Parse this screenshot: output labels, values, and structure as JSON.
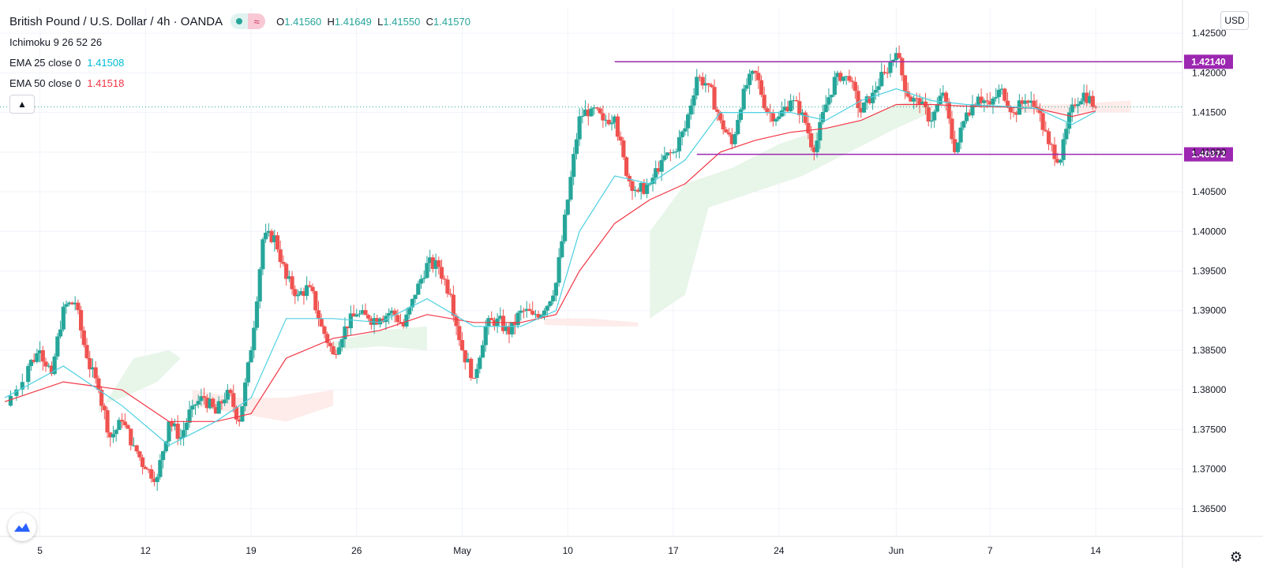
{
  "header": {
    "symbol": "British Pound / U.S. Dollar",
    "interval": "4h",
    "broker": "OANDA",
    "ohlc": {
      "o_label": "O",
      "o": "1.41560",
      "h_label": "H",
      "h": "1.41649",
      "l_label": "L",
      "l": "1.41550",
      "c_label": "C",
      "c": "1.41570"
    }
  },
  "indicators": [
    {
      "label": "Ichimoku 9 26 52 26",
      "value": "",
      "color": "#131722"
    },
    {
      "label": "EMA 25 close 0",
      "value": "1.41508",
      "color": "#00bcd4"
    },
    {
      "label": "EMA 50 close 0",
      "value": "1.41518",
      "color": "#f23645"
    }
  ],
  "currency_button": "USD",
  "colors": {
    "up": "#26a69a",
    "down": "#ef5350",
    "ema25": "#4dd0e1",
    "ema50": "#f23645",
    "level": "#9c27b0",
    "cloud_bull": "#e8f5e9",
    "cloud_bear": "#fdecea"
  },
  "chart_data": {
    "type": "candlestick",
    "x_axis": {
      "min": 0,
      "max": 100,
      "ticks": [
        {
          "label": "5",
          "x": 3
        },
        {
          "label": "12",
          "x": 12
        },
        {
          "label": "19",
          "x": 21
        },
        {
          "label": "26",
          "x": 30
        },
        {
          "label": "May",
          "x": 39
        },
        {
          "label": "10",
          "x": 48
        },
        {
          "label": "17",
          "x": 57
        },
        {
          "label": "24",
          "x": 66
        },
        {
          "label": "Jun",
          "x": 76
        },
        {
          "label": "7",
          "x": 84
        },
        {
          "label": "14",
          "x": 93
        }
      ]
    },
    "y_axis": {
      "min": 1.3615,
      "max": 1.4282,
      "ticks": [
        "1.42500",
        "1.42000",
        "1.41500",
        "1.41000",
        "1.40500",
        "1.40000",
        "1.39500",
        "1.39000",
        "1.38500",
        "1.38000",
        "1.37500",
        "1.37000",
        "1.36500"
      ]
    },
    "close_series": [
      [
        0,
        1.378
      ],
      [
        2,
        1.383
      ],
      [
        3,
        1.385
      ],
      [
        4,
        1.382
      ],
      [
        5,
        1.3905
      ],
      [
        6,
        1.391
      ],
      [
        7,
        1.384
      ],
      [
        8,
        1.38
      ],
      [
        9,
        1.374
      ],
      [
        10,
        1.376
      ],
      [
        11,
        1.373
      ],
      [
        12,
        1.37
      ],
      [
        13,
        1.369
      ],
      [
        14,
        1.376
      ],
      [
        15,
        1.374
      ],
      [
        16,
        1.378
      ],
      [
        17,
        1.379
      ],
      [
        18,
        1.377
      ],
      [
        19,
        1.38
      ],
      [
        20,
        1.376
      ],
      [
        21,
        1.385
      ],
      [
        22,
        1.399
      ],
      [
        23,
        1.3995
      ],
      [
        24,
        1.394
      ],
      [
        25,
        1.392
      ],
      [
        26,
        1.393
      ],
      [
        27,
        1.388
      ],
      [
        28,
        1.3845
      ],
      [
        29,
        1.388
      ],
      [
        30,
        1.3895
      ],
      [
        31,
        1.389
      ],
      [
        32,
        1.389
      ],
      [
        33,
        1.39
      ],
      [
        34,
        1.388
      ],
      [
        35,
        1.392
      ],
      [
        36,
        1.396
      ],
      [
        37,
        1.3955
      ],
      [
        38,
        1.392
      ],
      [
        39,
        1.385
      ],
      [
        40,
        1.3815
      ],
      [
        41,
        1.388
      ],
      [
        42,
        1.389
      ],
      [
        43,
        1.387
      ],
      [
        44,
        1.39
      ],
      [
        45,
        1.3895
      ],
      [
        46,
        1.39
      ],
      [
        47,
        1.3935
      ],
      [
        48,
        1.404
      ],
      [
        49,
        1.4145
      ],
      [
        50,
        1.4155
      ],
      [
        51,
        1.414
      ],
      [
        52,
        1.4145
      ],
      [
        53,
        1.407
      ],
      [
        54,
        1.405
      ],
      [
        55,
        1.406
      ],
      [
        56,
        1.409
      ],
      [
        57,
        1.41
      ],
      [
        58,
        1.413
      ],
      [
        59,
        1.4195
      ],
      [
        60,
        1.4185
      ],
      [
        61,
        1.414
      ],
      [
        62,
        1.411
      ],
      [
        63,
        1.418
      ],
      [
        64,
        1.42
      ],
      [
        65,
        1.415
      ],
      [
        66,
        1.4145
      ],
      [
        67,
        1.4165
      ],
      [
        68,
        1.415
      ],
      [
        69,
        1.41
      ],
      [
        70,
        1.416
      ],
      [
        71,
        1.42
      ],
      [
        72,
        1.419
      ],
      [
        73,
        1.415
      ],
      [
        74,
        1.4175
      ],
      [
        75,
        1.42
      ],
      [
        76,
        1.4225
      ],
      [
        77,
        1.417
      ],
      [
        78,
        1.416
      ],
      [
        79,
        1.414
      ],
      [
        80,
        1.4175
      ],
      [
        81,
        1.41
      ],
      [
        82,
        1.415
      ],
      [
        83,
        1.417
      ],
      [
        84,
        1.416
      ],
      [
        85,
        1.418
      ],
      [
        86,
        1.415
      ],
      [
        87,
        1.4165
      ],
      [
        88,
        1.4155
      ],
      [
        89,
        1.411
      ],
      [
        90,
        1.409
      ],
      [
        91,
        1.416
      ],
      [
        92,
        1.4175
      ],
      [
        93,
        1.4157
      ]
    ],
    "ema25": [
      [
        0,
        1.379
      ],
      [
        5,
        1.383
      ],
      [
        10,
        1.378
      ],
      [
        14,
        1.373
      ],
      [
        18,
        1.376
      ],
      [
        21,
        1.379
      ],
      [
        24,
        1.389
      ],
      [
        28,
        1.389
      ],
      [
        32,
        1.3885
      ],
      [
        36,
        1.3915
      ],
      [
        40,
        1.388
      ],
      [
        44,
        1.388
      ],
      [
        47,
        1.39
      ],
      [
        49,
        1.4
      ],
      [
        52,
        1.407
      ],
      [
        55,
        1.406
      ],
      [
        58,
        1.409
      ],
      [
        61,
        1.415
      ],
      [
        64,
        1.415
      ],
      [
        67,
        1.415
      ],
      [
        70,
        1.414
      ],
      [
        73,
        1.4165
      ],
      [
        76,
        1.418
      ],
      [
        79,
        1.4165
      ],
      [
        82,
        1.416
      ],
      [
        85,
        1.4158
      ],
      [
        88,
        1.4155
      ],
      [
        91,
        1.4135
      ],
      [
        93,
        1.4151
      ]
    ],
    "ema50": [
      [
        0,
        1.3785
      ],
      [
        5,
        1.381
      ],
      [
        10,
        1.38
      ],
      [
        14,
        1.376
      ],
      [
        18,
        1.376
      ],
      [
        21,
        1.377
      ],
      [
        24,
        1.384
      ],
      [
        28,
        1.3865
      ],
      [
        32,
        1.3875
      ],
      [
        36,
        1.3895
      ],
      [
        40,
        1.3885
      ],
      [
        44,
        1.3885
      ],
      [
        47,
        1.3895
      ],
      [
        49,
        1.395
      ],
      [
        52,
        1.401
      ],
      [
        55,
        1.404
      ],
      [
        58,
        1.406
      ],
      [
        61,
        1.41
      ],
      [
        64,
        1.4115
      ],
      [
        67,
        1.4125
      ],
      [
        70,
        1.413
      ],
      [
        73,
        1.414
      ],
      [
        76,
        1.416
      ],
      [
        79,
        1.416
      ],
      [
        82,
        1.4158
      ],
      [
        85,
        1.4157
      ],
      [
        88,
        1.4155
      ],
      [
        91,
        1.4145
      ],
      [
        93,
        1.4152
      ]
    ],
    "cloud_bull": [
      [
        [
          8,
          1.377
        ],
        [
          11,
          1.384
        ],
        [
          14,
          1.385
        ],
        [
          15,
          1.384
        ],
        [
          13,
          1.381
        ],
        [
          10,
          1.379
        ],
        [
          8,
          1.378
        ]
      ],
      [
        [
          28,
          1.386
        ],
        [
          32,
          1.3875
        ],
        [
          36,
          1.388
        ],
        [
          36,
          1.385
        ],
        [
          32,
          1.3855
        ],
        [
          28,
          1.385
        ]
      ],
      [
        [
          55,
          1.4
        ],
        [
          58,
          1.406
        ],
        [
          62,
          1.408
        ],
        [
          66,
          1.411
        ],
        [
          70,
          1.413
        ],
        [
          73,
          1.414
        ],
        [
          76,
          1.416
        ],
        [
          79,
          1.417
        ],
        [
          79,
          1.415
        ],
        [
          76,
          1.413
        ],
        [
          72,
          1.41
        ],
        [
          68,
          1.407
        ],
        [
          64,
          1.405
        ],
        [
          60,
          1.403
        ],
        [
          58,
          1.392
        ],
        [
          55,
          1.389
        ]
      ]
    ],
    "cloud_bear": [
      [
        [
          16,
          1.38
        ],
        [
          20,
          1.379
        ],
        [
          24,
          1.379
        ],
        [
          28,
          1.38
        ],
        [
          28,
          1.378
        ],
        [
          24,
          1.376
        ],
        [
          20,
          1.377
        ],
        [
          16,
          1.378
        ]
      ],
      [
        [
          46,
          1.389
        ],
        [
          50,
          1.389
        ],
        [
          54,
          1.3885
        ],
        [
          54,
          1.388
        ],
        [
          50,
          1.388
        ],
        [
          46,
          1.3882
        ]
      ],
      [
        [
          86,
          1.416
        ],
        [
          90,
          1.416
        ],
        [
          96,
          1.4165
        ],
        [
          96,
          1.415
        ],
        [
          90,
          1.415
        ],
        [
          86,
          1.415
        ]
      ]
    ],
    "levels": [
      {
        "name": "resistance",
        "value": 1.4214,
        "label": "1.42140",
        "from": 52,
        "to": 96
      },
      {
        "name": "support",
        "value": 1.40972,
        "label": "1.40972",
        "from": 59,
        "to": 96
      }
    ],
    "last_price": 1.4157
  }
}
